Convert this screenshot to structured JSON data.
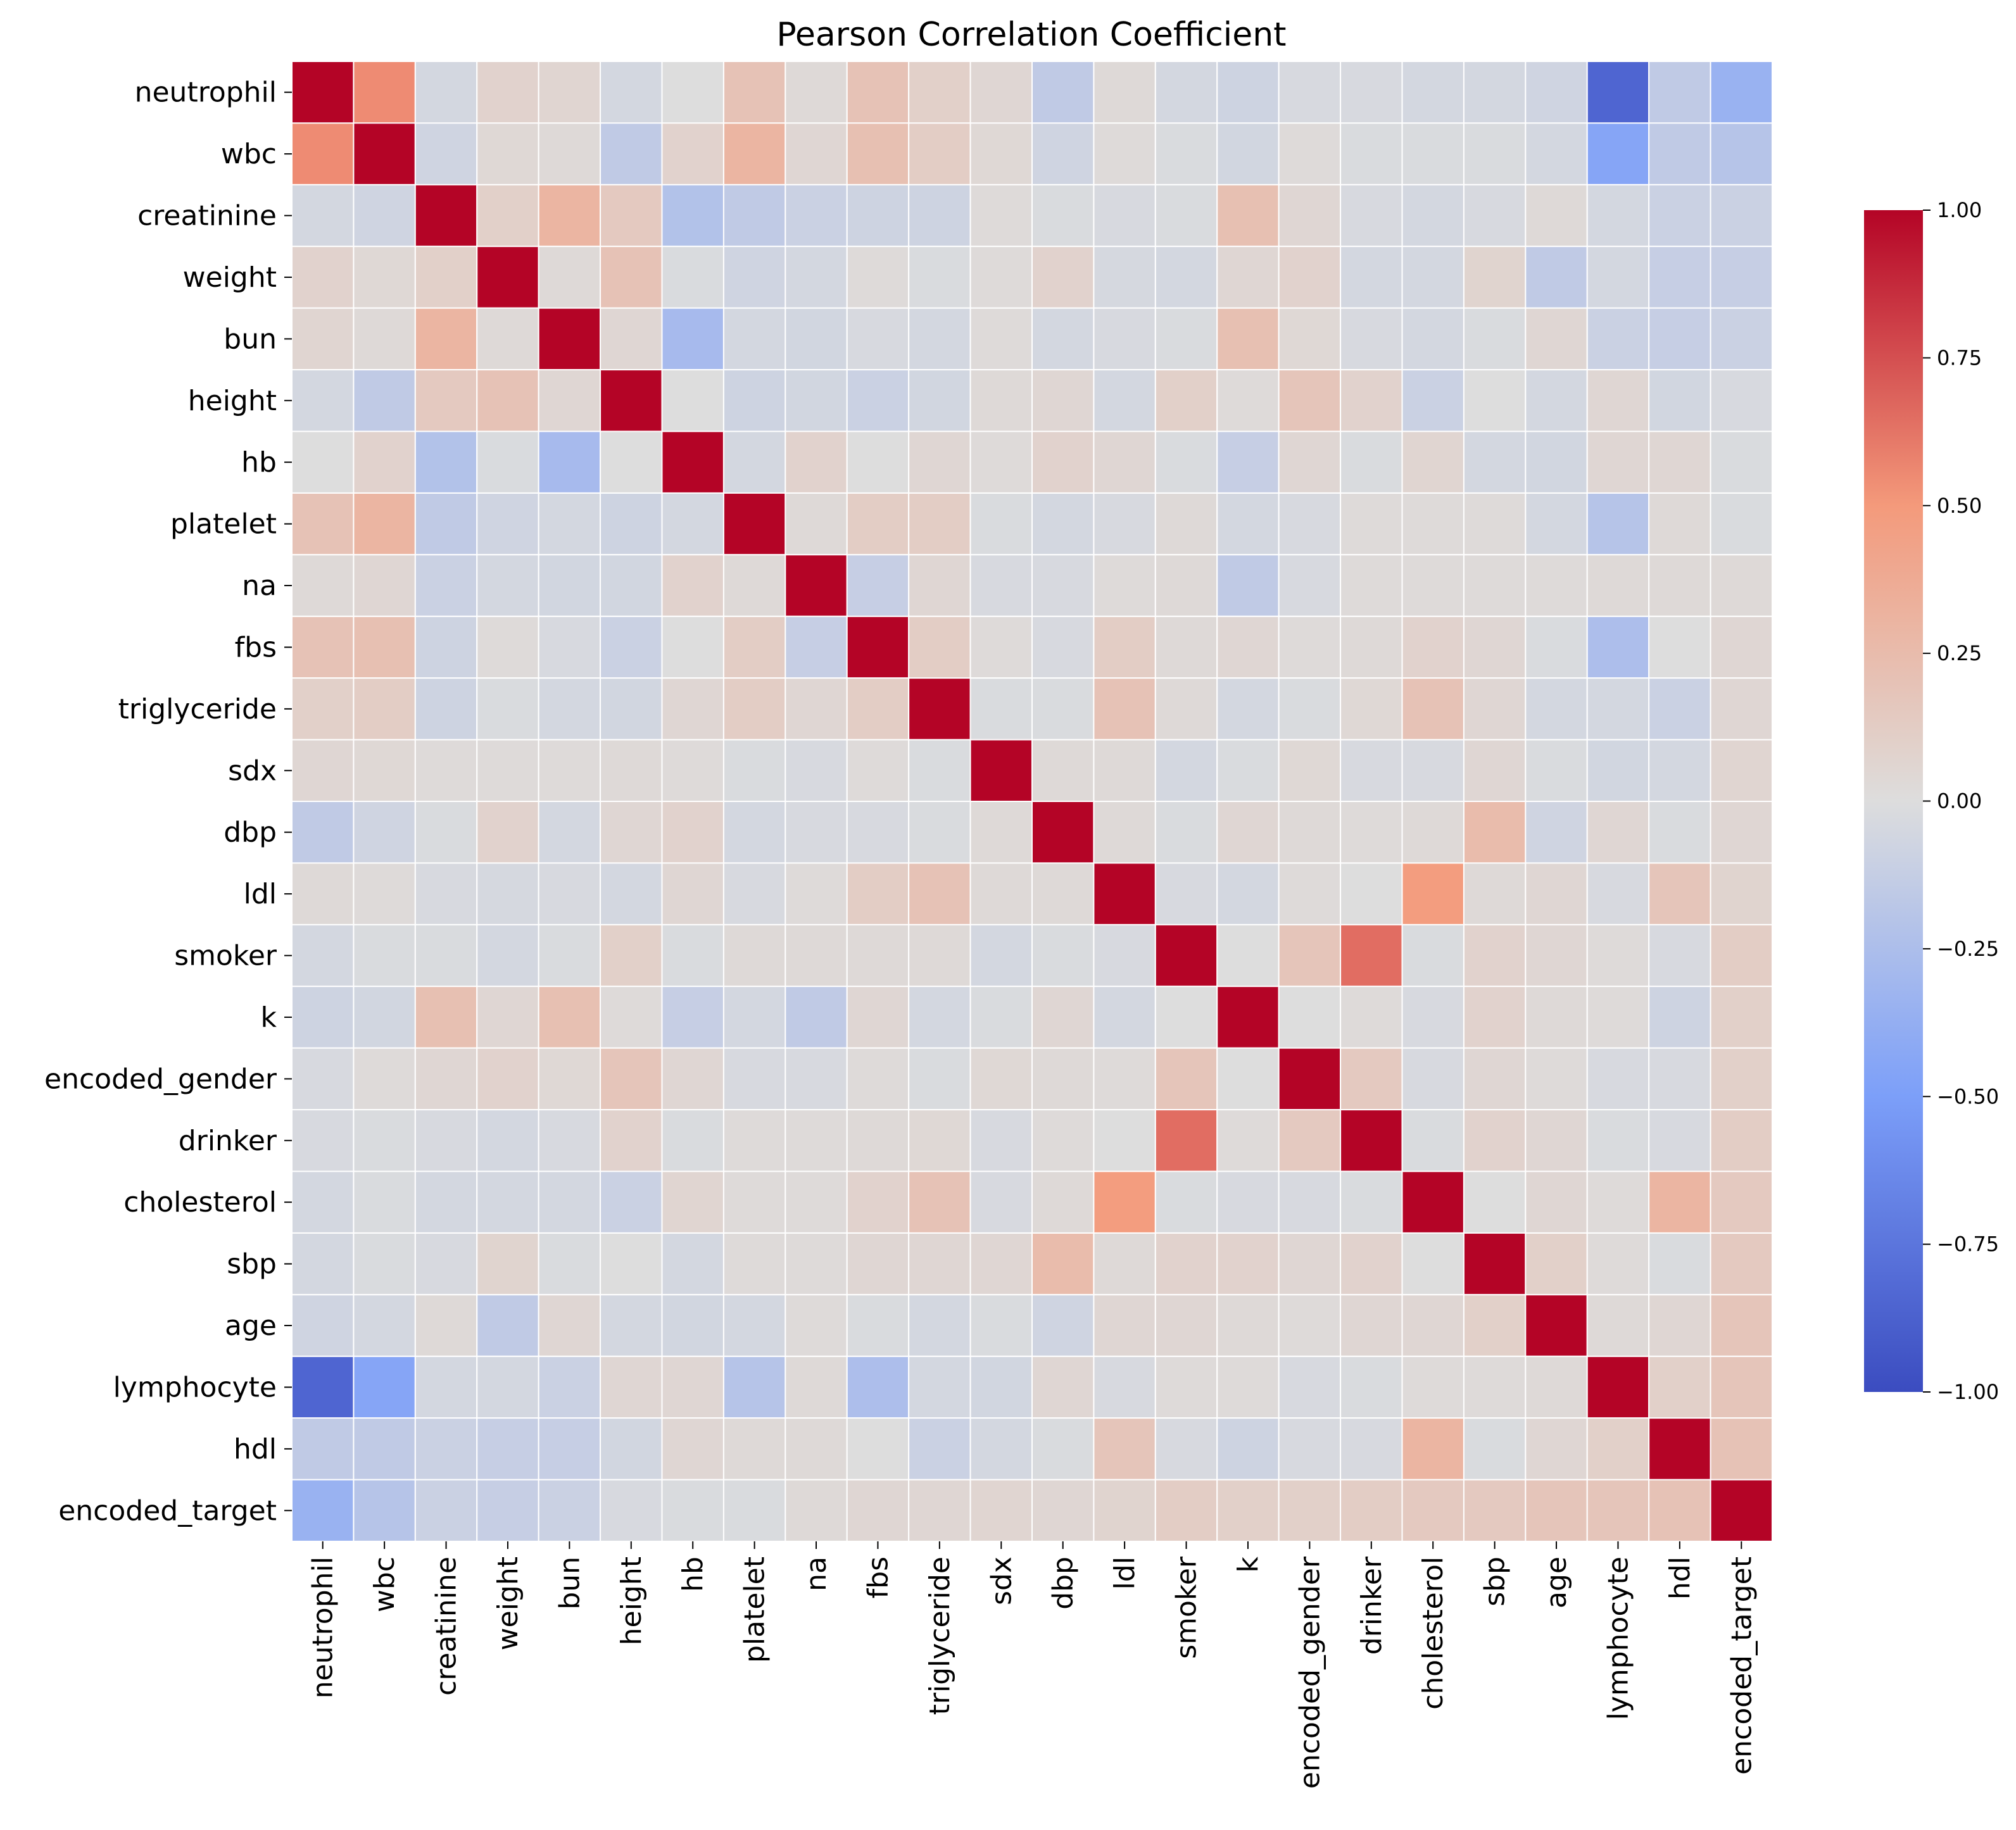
{
  "chart_data": {
    "type": "heatmap",
    "title": "Pearson Correlation Coefficient",
    "xlabel": "",
    "ylabel": "",
    "labels": [
      "neutrophil",
      "wbc",
      "creatinine",
      "weight",
      "bun",
      "height",
      "hb",
      "platelet",
      "na",
      "fbs",
      "triglyceride",
      "sdx",
      "dbp",
      "ldl",
      "smoker",
      "k",
      "encoded_gender",
      "drinker",
      "cholesterol",
      "sbp",
      "age",
      "lymphocyte",
      "hdl",
      "encoded_target"
    ],
    "values": [
      [
        1.0,
        0.55,
        -0.05,
        0.08,
        0.06,
        -0.05,
        0.0,
        0.2,
        0.03,
        0.2,
        0.1,
        0.05,
        -0.15,
        0.03,
        -0.05,
        -0.08,
        -0.03,
        -0.03,
        -0.05,
        -0.05,
        -0.07,
        -0.85,
        -0.15,
        -0.35
      ],
      [
        0.55,
        1.0,
        -0.07,
        0.04,
        0.03,
        -0.15,
        0.08,
        0.3,
        0.05,
        0.22,
        0.12,
        0.04,
        -0.07,
        0.02,
        -0.02,
        -0.06,
        0.02,
        -0.02,
        -0.02,
        -0.02,
        -0.05,
        -0.45,
        -0.15,
        -0.2
      ],
      [
        -0.05,
        -0.07,
        1.0,
        0.1,
        0.3,
        0.15,
        -0.22,
        -0.15,
        -0.1,
        -0.08,
        -0.08,
        0.02,
        -0.02,
        -0.03,
        -0.02,
        0.22,
        0.05,
        -0.03,
        -0.05,
        -0.03,
        0.03,
        -0.05,
        -0.1,
        -0.1
      ],
      [
        0.08,
        0.04,
        0.1,
        1.0,
        0.03,
        0.2,
        -0.02,
        -0.07,
        -0.05,
        0.02,
        -0.02,
        0.02,
        0.08,
        -0.04,
        -0.05,
        0.05,
        0.08,
        -0.05,
        -0.05,
        0.07,
        -0.15,
        -0.05,
        -0.12,
        -0.12
      ],
      [
        0.06,
        0.03,
        0.3,
        0.03,
        1.0,
        0.05,
        -0.28,
        -0.05,
        -0.06,
        -0.03,
        -0.05,
        0.02,
        -0.05,
        -0.03,
        -0.02,
        0.22,
        0.04,
        -0.03,
        -0.05,
        -0.02,
        0.05,
        -0.1,
        -0.12,
        -0.1
      ],
      [
        -0.05,
        -0.15,
        0.15,
        0.2,
        0.05,
        1.0,
        0.0,
        -0.08,
        -0.06,
        -0.1,
        -0.06,
        0.03,
        0.05,
        -0.05,
        0.1,
        0.02,
        0.18,
        0.08,
        -0.1,
        0.0,
        -0.05,
        0.05,
        -0.06,
        -0.03
      ],
      [
        0.0,
        0.08,
        -0.22,
        -0.02,
        -0.28,
        0.0,
        1.0,
        -0.05,
        0.08,
        0.0,
        0.05,
        0.02,
        0.08,
        0.05,
        -0.02,
        -0.12,
        0.05,
        -0.02,
        0.06,
        -0.05,
        -0.06,
        0.05,
        0.05,
        -0.02
      ],
      [
        0.2,
        0.3,
        -0.15,
        -0.07,
        -0.05,
        -0.08,
        -0.05,
        1.0,
        0.03,
        0.12,
        0.12,
        -0.02,
        -0.05,
        -0.03,
        0.03,
        -0.05,
        -0.03,
        0.02,
        0.02,
        0.02,
        -0.05,
        -0.2,
        0.03,
        -0.02
      ],
      [
        0.03,
        0.05,
        -0.1,
        -0.05,
        -0.06,
        -0.06,
        0.08,
        0.03,
        1.0,
        -0.12,
        0.05,
        -0.03,
        -0.03,
        0.02,
        0.03,
        -0.15,
        -0.03,
        0.02,
        0.02,
        0.02,
        0.02,
        0.03,
        0.03,
        0.03
      ],
      [
        0.2,
        0.22,
        -0.08,
        0.02,
        -0.03,
        -0.1,
        0.0,
        0.12,
        -0.12,
        1.0,
        0.12,
        0.02,
        -0.03,
        0.12,
        0.03,
        0.05,
        0.02,
        0.03,
        0.08,
        0.05,
        -0.02,
        -0.25,
        0.0,
        0.05
      ],
      [
        0.1,
        0.12,
        -0.08,
        -0.02,
        -0.05,
        -0.06,
        0.05,
        0.12,
        0.05,
        0.12,
        1.0,
        -0.02,
        -0.02,
        0.2,
        0.03,
        -0.05,
        -0.02,
        0.04,
        0.2,
        0.05,
        -0.05,
        -0.05,
        -0.1,
        0.05
      ],
      [
        0.05,
        0.04,
        0.02,
        0.02,
        0.02,
        0.03,
        0.02,
        -0.02,
        -0.03,
        0.02,
        -0.02,
        1.0,
        0.03,
        0.03,
        -0.05,
        -0.02,
        0.04,
        -0.03,
        -0.03,
        0.05,
        -0.02,
        -0.06,
        -0.05,
        0.06
      ],
      [
        -0.15,
        -0.07,
        -0.02,
        0.08,
        -0.05,
        0.05,
        0.08,
        -0.05,
        -0.03,
        -0.03,
        -0.02,
        0.03,
        1.0,
        0.03,
        -0.02,
        0.05,
        0.03,
        0.02,
        0.03,
        0.25,
        -0.07,
        0.05,
        -0.02,
        0.05
      ],
      [
        0.03,
        0.02,
        -0.03,
        -0.04,
        -0.03,
        -0.05,
        0.05,
        -0.03,
        0.02,
        0.12,
        0.2,
        0.03,
        0.03,
        1.0,
        -0.03,
        -0.05,
        0.02,
        0.0,
        0.48,
        0.03,
        0.05,
        -0.03,
        0.18,
        0.07
      ],
      [
        -0.05,
        -0.02,
        -0.02,
        -0.05,
        -0.02,
        0.1,
        -0.02,
        0.03,
        0.03,
        0.03,
        0.03,
        -0.05,
        -0.02,
        -0.03,
        1.0,
        0.0,
        0.18,
        0.65,
        -0.02,
        0.08,
        0.05,
        0.02,
        -0.03,
        0.12
      ],
      [
        -0.08,
        -0.06,
        0.22,
        0.05,
        0.22,
        0.02,
        -0.12,
        -0.05,
        -0.15,
        0.05,
        -0.05,
        -0.02,
        0.05,
        -0.05,
        0.0,
        1.0,
        0.0,
        0.02,
        -0.03,
        0.08,
        0.03,
        0.02,
        -0.08,
        0.1
      ],
      [
        -0.03,
        0.02,
        0.05,
        0.08,
        0.04,
        0.18,
        0.05,
        -0.03,
        -0.03,
        0.02,
        -0.02,
        0.04,
        0.03,
        0.02,
        0.18,
        0.0,
        1.0,
        0.15,
        -0.03,
        0.05,
        0.02,
        -0.03,
        -0.03,
        0.1
      ],
      [
        -0.03,
        -0.02,
        -0.03,
        -0.05,
        -0.03,
        0.08,
        -0.02,
        0.02,
        0.02,
        0.03,
        0.04,
        -0.03,
        0.02,
        0.0,
        0.65,
        0.02,
        0.15,
        1.0,
        -0.02,
        0.08,
        0.05,
        -0.02,
        -0.03,
        0.12
      ],
      [
        -0.05,
        -0.02,
        -0.05,
        -0.05,
        -0.05,
        -0.1,
        0.06,
        0.02,
        0.02,
        0.08,
        0.2,
        -0.03,
        0.03,
        0.48,
        -0.02,
        -0.03,
        -0.03,
        -0.02,
        1.0,
        0.0,
        0.05,
        0.02,
        0.3,
        0.15
      ],
      [
        -0.05,
        -0.02,
        -0.03,
        0.07,
        -0.02,
        0.0,
        -0.05,
        0.02,
        0.02,
        0.05,
        0.05,
        0.05,
        0.25,
        0.03,
        0.08,
        0.08,
        0.05,
        0.08,
        0.0,
        1.0,
        0.1,
        0.02,
        -0.02,
        0.15
      ],
      [
        -0.07,
        -0.05,
        0.03,
        -0.15,
        0.05,
        -0.05,
        -0.06,
        -0.05,
        0.02,
        -0.02,
        -0.05,
        -0.02,
        -0.07,
        0.05,
        0.05,
        0.03,
        0.02,
        0.05,
        0.05,
        0.1,
        1.0,
        0.03,
        0.05,
        0.18
      ],
      [
        -0.85,
        -0.45,
        -0.05,
        -0.05,
        -0.1,
        0.05,
        0.05,
        -0.2,
        0.03,
        -0.25,
        -0.05,
        -0.06,
        0.05,
        -0.03,
        0.02,
        0.02,
        -0.03,
        -0.02,
        0.02,
        0.02,
        0.03,
        1.0,
        0.1,
        0.18
      ],
      [
        -0.15,
        -0.15,
        -0.1,
        -0.12,
        -0.12,
        -0.06,
        0.05,
        0.03,
        0.03,
        0.0,
        -0.1,
        -0.05,
        -0.02,
        0.18,
        -0.03,
        -0.08,
        -0.03,
        -0.03,
        0.3,
        -0.02,
        0.05,
        0.1,
        1.0,
        0.2
      ],
      [
        -0.35,
        -0.2,
        -0.1,
        -0.12,
        -0.1,
        -0.03,
        -0.02,
        -0.02,
        0.03,
        0.05,
        0.05,
        0.06,
        0.05,
        0.07,
        0.12,
        0.1,
        0.1,
        0.12,
        0.15,
        0.15,
        0.18,
        0.18,
        0.2,
        1.0
      ]
    ],
    "vmin": -1.0,
    "vmax": 1.0,
    "colormap": "coolwarm",
    "colorbar": {
      "ticks": [
        1.0,
        0.75,
        0.5,
        0.25,
        0.0,
        -0.25,
        -0.5,
        -0.75,
        -1.0
      ],
      "tick_labels": [
        "1.00",
        "0.75",
        "0.50",
        "0.25",
        "0.00",
        "−0.25",
        "−0.50",
        "−0.75",
        "−1.00"
      ]
    },
    "grid": true,
    "legend": "right",
    "colors": {
      "low": "#3b4cc0",
      "mid": "#dddddd",
      "high": "#b40426",
      "gridline": "#ffffff"
    }
  }
}
